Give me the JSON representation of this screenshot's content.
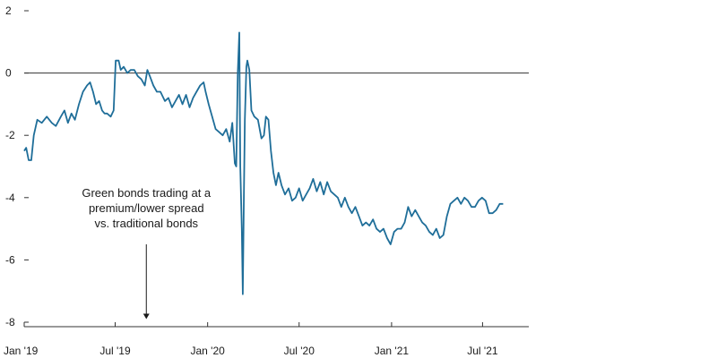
{
  "chart_data": {
    "type": "line",
    "title": "",
    "xlabel": "",
    "ylabel": "",
    "ylim": [
      -8,
      2
    ],
    "yticks": [
      2,
      0,
      -2,
      -4,
      -6,
      -8
    ],
    "xticks": [
      {
        "label": "Jan '19",
        "date": "2019-01-01"
      },
      {
        "label": "Jul '19",
        "date": "2019-07-01"
      },
      {
        "label": "Jan '20",
        "date": "2020-01-01"
      },
      {
        "label": "Jul '20",
        "date": "2020-07-01"
      },
      {
        "label": "Jan '21",
        "date": "2021-01-01"
      },
      {
        "label": "Jul '21",
        "date": "2021-07-01"
      }
    ],
    "xlim": [
      "2019-01-01",
      "2021-10-01"
    ],
    "grid": false,
    "zero_line": true,
    "line_color": "#1f6e99",
    "annotation": {
      "lines": [
        "Green bonds trading at a",
        "premium/lower spread",
        "vs. traditional bonds"
      ],
      "arrow_date": "2019-09-01",
      "arrow_from": -5.5,
      "arrow_to": -7.9
    },
    "series": [
      {
        "points": [
          [
            "2019-01-01",
            -2.5
          ],
          [
            "2019-01-05",
            -2.4
          ],
          [
            "2019-01-10",
            -2.8
          ],
          [
            "2019-01-15",
            -2.8
          ],
          [
            "2019-01-20",
            -2.0
          ],
          [
            "2019-01-27",
            -1.5
          ],
          [
            "2019-02-05",
            -1.6
          ],
          [
            "2019-02-15",
            -1.4
          ],
          [
            "2019-02-25",
            -1.6
          ],
          [
            "2019-03-05",
            -1.7
          ],
          [
            "2019-03-15",
            -1.4
          ],
          [
            "2019-03-22",
            -1.2
          ],
          [
            "2019-03-29",
            -1.6
          ],
          [
            "2019-04-05",
            -1.3
          ],
          [
            "2019-04-12",
            -1.5
          ],
          [
            "2019-04-20",
            -1.0
          ],
          [
            "2019-04-28",
            -0.6
          ],
          [
            "2019-05-06",
            -0.4
          ],
          [
            "2019-05-12",
            -0.3
          ],
          [
            "2019-05-18",
            -0.6
          ],
          [
            "2019-05-24",
            -1.0
          ],
          [
            "2019-05-30",
            -0.9
          ],
          [
            "2019-06-05",
            -1.2
          ],
          [
            "2019-06-10",
            -1.3
          ],
          [
            "2019-06-15",
            -1.3
          ],
          [
            "2019-06-22",
            -1.4
          ],
          [
            "2019-06-28",
            -1.2
          ],
          [
            "2019-07-02",
            0.4
          ],
          [
            "2019-07-08",
            0.4
          ],
          [
            "2019-07-12",
            0.1
          ],
          [
            "2019-07-18",
            0.2
          ],
          [
            "2019-07-25",
            0.0
          ],
          [
            "2019-08-01",
            0.1
          ],
          [
            "2019-08-08",
            0.1
          ],
          [
            "2019-08-15",
            -0.1
          ],
          [
            "2019-08-22",
            -0.2
          ],
          [
            "2019-08-29",
            -0.4
          ],
          [
            "2019-09-03",
            0.1
          ],
          [
            "2019-09-08",
            -0.1
          ],
          [
            "2019-09-15",
            -0.4
          ],
          [
            "2019-09-22",
            -0.6
          ],
          [
            "2019-09-29",
            -0.6
          ],
          [
            "2019-10-08",
            -0.9
          ],
          [
            "2019-10-15",
            -0.8
          ],
          [
            "2019-10-22",
            -1.1
          ],
          [
            "2019-10-29",
            -0.9
          ],
          [
            "2019-11-05",
            -0.7
          ],
          [
            "2019-11-12",
            -1.0
          ],
          [
            "2019-11-19",
            -0.7
          ],
          [
            "2019-11-26",
            -1.1
          ],
          [
            "2019-12-03",
            -0.8
          ],
          [
            "2019-12-10",
            -0.6
          ],
          [
            "2019-12-17",
            -0.4
          ],
          [
            "2019-12-24",
            -0.3
          ],
          [
            "2019-12-28",
            -0.6
          ],
          [
            "2020-01-03",
            -1.0
          ],
          [
            "2020-01-10",
            -1.4
          ],
          [
            "2020-01-17",
            -1.8
          ],
          [
            "2020-01-24",
            -1.9
          ],
          [
            "2020-01-31",
            -2.0
          ],
          [
            "2020-02-07",
            -1.8
          ],
          [
            "2020-02-14",
            -2.2
          ],
          [
            "2020-02-19",
            -1.6
          ],
          [
            "2020-02-24",
            -2.9
          ],
          [
            "2020-02-27",
            -3.0
          ],
          [
            "2020-03-01",
            0.0
          ],
          [
            "2020-03-04",
            1.3
          ],
          [
            "2020-03-06",
            -3.0
          ],
          [
            "2020-03-09",
            -5.0
          ],
          [
            "2020-03-11",
            -7.1
          ],
          [
            "2020-03-13",
            -4.0
          ],
          [
            "2020-03-15",
            -1.5
          ],
          [
            "2020-03-18",
            0.2
          ],
          [
            "2020-03-20",
            0.4
          ],
          [
            "2020-03-24",
            0.1
          ],
          [
            "2020-03-28",
            -1.2
          ],
          [
            "2020-04-03",
            -1.4
          ],
          [
            "2020-04-10",
            -1.5
          ],
          [
            "2020-04-17",
            -2.1
          ],
          [
            "2020-04-22",
            -2.0
          ],
          [
            "2020-04-26",
            -1.4
          ],
          [
            "2020-05-01",
            -1.5
          ],
          [
            "2020-05-06",
            -2.5
          ],
          [
            "2020-05-11",
            -3.2
          ],
          [
            "2020-05-16",
            -3.6
          ],
          [
            "2020-05-21",
            -3.2
          ],
          [
            "2020-05-27",
            -3.6
          ],
          [
            "2020-06-03",
            -3.9
          ],
          [
            "2020-06-10",
            -3.7
          ],
          [
            "2020-06-17",
            -4.1
          ],
          [
            "2020-06-24",
            -4.0
          ],
          [
            "2020-07-01",
            -3.7
          ],
          [
            "2020-07-08",
            -4.1
          ],
          [
            "2020-07-15",
            -3.9
          ],
          [
            "2020-07-22",
            -3.7
          ],
          [
            "2020-07-29",
            -3.4
          ],
          [
            "2020-08-05",
            -3.8
          ],
          [
            "2020-08-12",
            -3.5
          ],
          [
            "2020-08-19",
            -3.9
          ],
          [
            "2020-08-26",
            -3.5
          ],
          [
            "2020-09-02",
            -3.8
          ],
          [
            "2020-09-09",
            -3.9
          ],
          [
            "2020-09-16",
            -4.0
          ],
          [
            "2020-09-23",
            -4.3
          ],
          [
            "2020-09-30",
            -4.0
          ],
          [
            "2020-10-07",
            -4.3
          ],
          [
            "2020-10-14",
            -4.5
          ],
          [
            "2020-10-21",
            -4.3
          ],
          [
            "2020-10-28",
            -4.6
          ],
          [
            "2020-11-04",
            -4.9
          ],
          [
            "2020-11-11",
            -4.8
          ],
          [
            "2020-11-18",
            -4.9
          ],
          [
            "2020-11-25",
            -4.7
          ],
          [
            "2020-12-02",
            -5.0
          ],
          [
            "2020-12-09",
            -5.1
          ],
          [
            "2020-12-16",
            -5.0
          ],
          [
            "2020-12-23",
            -5.3
          ],
          [
            "2020-12-30",
            -5.5
          ],
          [
            "2021-01-06",
            -5.1
          ],
          [
            "2021-01-13",
            -5.0
          ],
          [
            "2021-01-20",
            -5.0
          ],
          [
            "2021-01-27",
            -4.8
          ],
          [
            "2021-02-03",
            -4.3
          ],
          [
            "2021-02-10",
            -4.6
          ],
          [
            "2021-02-17",
            -4.4
          ],
          [
            "2021-02-24",
            -4.6
          ],
          [
            "2021-03-03",
            -4.8
          ],
          [
            "2021-03-10",
            -4.9
          ],
          [
            "2021-03-17",
            -5.1
          ],
          [
            "2021-03-24",
            -5.2
          ],
          [
            "2021-03-31",
            -5.0
          ],
          [
            "2021-04-07",
            -5.3
          ],
          [
            "2021-04-14",
            -5.2
          ],
          [
            "2021-04-21",
            -4.6
          ],
          [
            "2021-04-28",
            -4.2
          ],
          [
            "2021-05-05",
            -4.1
          ],
          [
            "2021-05-12",
            -4.0
          ],
          [
            "2021-05-19",
            -4.2
          ],
          [
            "2021-05-26",
            -4.0
          ],
          [
            "2021-06-02",
            -4.1
          ],
          [
            "2021-06-09",
            -4.3
          ],
          [
            "2021-06-16",
            -4.3
          ],
          [
            "2021-06-23",
            -4.1
          ],
          [
            "2021-06-30",
            -4.0
          ],
          [
            "2021-07-07",
            -4.1
          ],
          [
            "2021-07-14",
            -4.5
          ],
          [
            "2021-07-21",
            -4.5
          ],
          [
            "2021-07-28",
            -4.4
          ],
          [
            "2021-08-04",
            -4.2
          ],
          [
            "2021-08-11",
            -4.2
          ]
        ]
      }
    ]
  }
}
